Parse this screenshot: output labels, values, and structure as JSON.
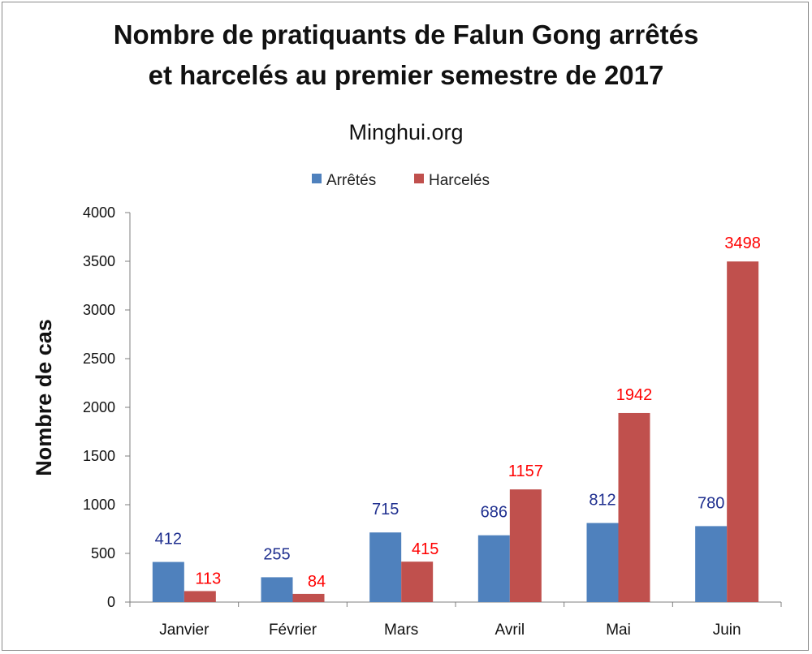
{
  "chart_data": {
    "type": "bar",
    "title_line1": "Nombre de pratiquants de Falun Gong arrêtés",
    "title_line2": "et harcelés au premier semestre de 2017",
    "subtitle": "Minghui.org",
    "xlabel": "",
    "ylabel": "Nombre  de  cas",
    "ylim": [
      0,
      4000
    ],
    "yticks": [
      0,
      500,
      1000,
      1500,
      2000,
      2500,
      3000,
      3500,
      4000
    ],
    "grid": false,
    "legend_position": "top-center",
    "categories": [
      "Janvier",
      "Février",
      "Mars",
      "Avril",
      "Mai",
      "Juin"
    ],
    "series": [
      {
        "name": "Arrêtés",
        "color": "#4f81bd",
        "label_color": "#1f2f8f",
        "values": [
          412,
          255,
          715,
          686,
          812,
          780
        ],
        "bar_values": [
          412,
          255,
          715,
          686,
          812,
          780
        ]
      },
      {
        "name": "Harcelés",
        "color": "#c0504d",
        "label_color": "#ff0000",
        "values": [
          113,
          84,
          415,
          1157,
          1942,
          3498
        ],
        "bar_values": [
          113,
          84,
          415,
          1157,
          1942,
          3498
        ]
      }
    ]
  }
}
